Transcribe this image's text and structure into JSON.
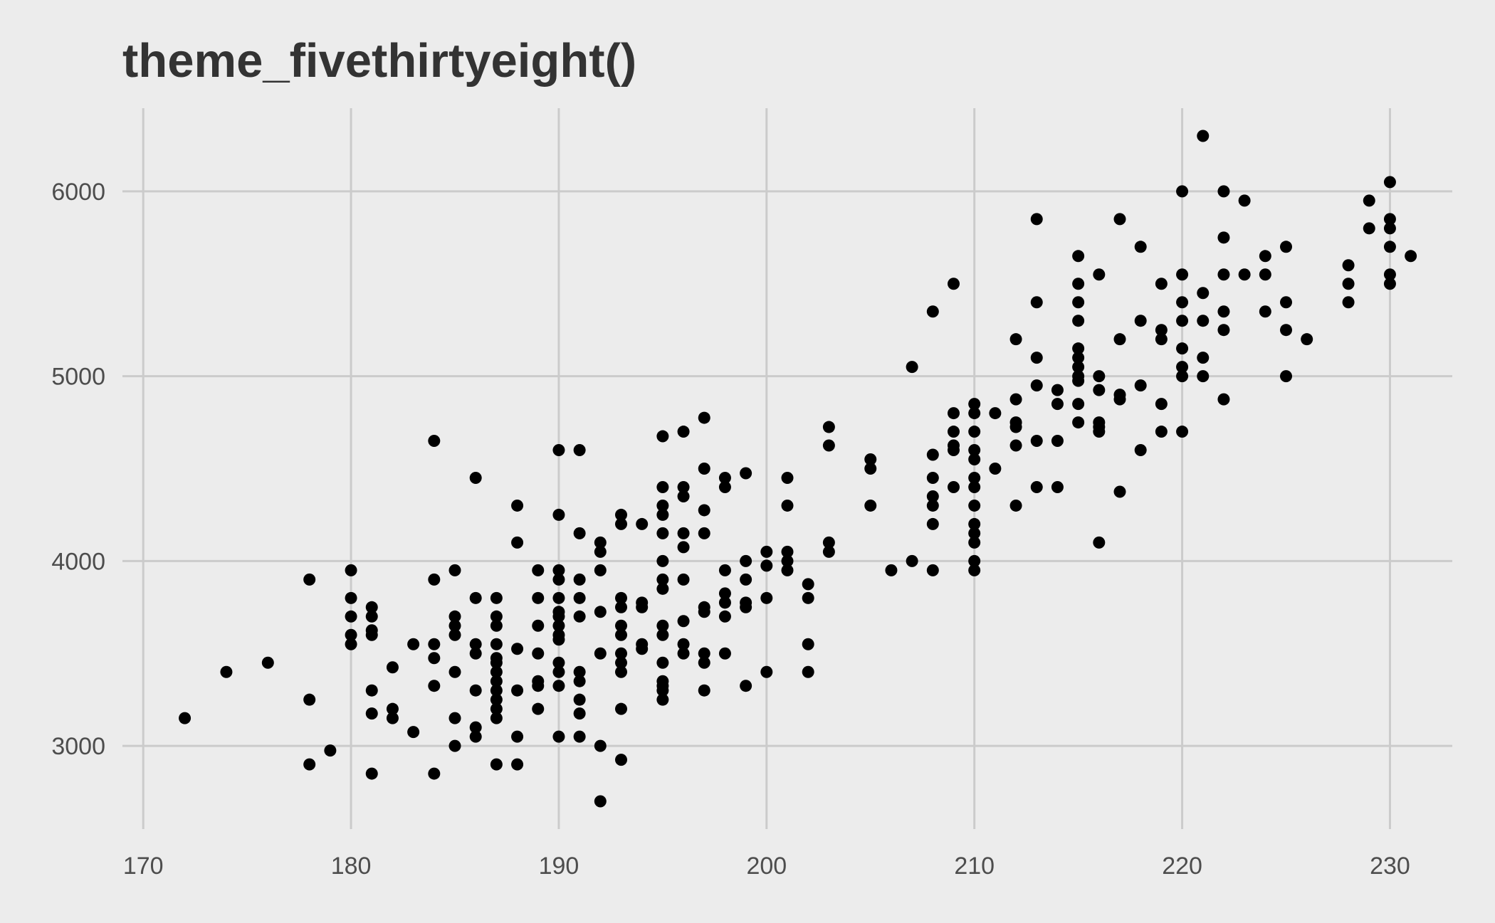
{
  "chart_data": {
    "type": "scatter",
    "title": "theme_fivethirtyeight()",
    "xlabel": "",
    "ylabel": "",
    "xlim": [
      169,
      233
    ],
    "ylim": [
      2550,
      6450
    ],
    "x_ticks": [
      170,
      180,
      190,
      200,
      210,
      220,
      230
    ],
    "y_ticks": [
      3000,
      4000,
      5000,
      6000
    ],
    "x_tick_labels": [
      "170",
      "180",
      "190",
      "200",
      "210",
      "220",
      "230"
    ],
    "y_tick_labels": [
      "3000",
      "4000",
      "5000",
      "6000"
    ],
    "grid": true,
    "legend": "none",
    "colors": {
      "background": "#ececec",
      "grid": "#cbcbcb",
      "points": "#000000",
      "text": "#333333"
    },
    "points": [
      [
        172,
        3150
      ],
      [
        174,
        3400
      ],
      [
        176,
        3450
      ],
      [
        178,
        3900
      ],
      [
        178,
        3250
      ],
      [
        178,
        2900
      ],
      [
        179,
        2975
      ],
      [
        180,
        3950
      ],
      [
        180,
        3800
      ],
      [
        180,
        3700
      ],
      [
        180,
        3600
      ],
      [
        180,
        3550
      ],
      [
        181,
        3750
      ],
      [
        181,
        3700
      ],
      [
        181,
        3625
      ],
      [
        181,
        3600
      ],
      [
        181,
        3300
      ],
      [
        181,
        3175
      ],
      [
        181,
        2850
      ],
      [
        182,
        3425
      ],
      [
        182,
        3200
      ],
      [
        182,
        3150
      ],
      [
        183,
        3550
      ],
      [
        183,
        3075
      ],
      [
        184,
        4650
      ],
      [
        184,
        3900
      ],
      [
        184,
        3550
      ],
      [
        184,
        3475
      ],
      [
        184,
        3325
      ],
      [
        184,
        2850
      ],
      [
        185,
        3950
      ],
      [
        185,
        3700
      ],
      [
        185,
        3650
      ],
      [
        185,
        3600
      ],
      [
        185,
        3400
      ],
      [
        185,
        3150
      ],
      [
        185,
        3000
      ],
      [
        186,
        4450
      ],
      [
        186,
        3800
      ],
      [
        186,
        3550
      ],
      [
        186,
        3500
      ],
      [
        186,
        3300
      ],
      [
        186,
        3100
      ],
      [
        186,
        3050
      ],
      [
        187,
        3800
      ],
      [
        187,
        3700
      ],
      [
        187,
        3650
      ],
      [
        187,
        3550
      ],
      [
        187,
        3475
      ],
      [
        187,
        3450
      ],
      [
        187,
        3400
      ],
      [
        187,
        3350
      ],
      [
        187,
        3300
      ],
      [
        187,
        3250
      ],
      [
        187,
        3200
      ],
      [
        187,
        3150
      ],
      [
        187,
        2900
      ],
      [
        188,
        4300
      ],
      [
        188,
        4100
      ],
      [
        188,
        3525
      ],
      [
        188,
        3300
      ],
      [
        188,
        3050
      ],
      [
        188,
        2900
      ],
      [
        189,
        3950
      ],
      [
        189,
        3800
      ],
      [
        189,
        3650
      ],
      [
        189,
        3500
      ],
      [
        189,
        3350
      ],
      [
        189,
        3325
      ],
      [
        189,
        3200
      ],
      [
        190,
        4600
      ],
      [
        190,
        4250
      ],
      [
        190,
        3950
      ],
      [
        190,
        3900
      ],
      [
        190,
        3800
      ],
      [
        190,
        3725
      ],
      [
        190,
        3700
      ],
      [
        190,
        3650
      ],
      [
        190,
        3600
      ],
      [
        190,
        3575
      ],
      [
        190,
        3450
      ],
      [
        190,
        3400
      ],
      [
        190,
        3325
      ],
      [
        190,
        3050
      ],
      [
        191,
        4600
      ],
      [
        191,
        4150
      ],
      [
        191,
        3900
      ],
      [
        191,
        3800
      ],
      [
        191,
        3700
      ],
      [
        191,
        3400
      ],
      [
        191,
        3350
      ],
      [
        191,
        3250
      ],
      [
        191,
        3175
      ],
      [
        191,
        3050
      ],
      [
        192,
        4100
      ],
      [
        192,
        4050
      ],
      [
        192,
        3950
      ],
      [
        192,
        3725
      ],
      [
        192,
        3500
      ],
      [
        192,
        3000
      ],
      [
        192,
        2700
      ],
      [
        193,
        4250
      ],
      [
        193,
        4200
      ],
      [
        193,
        3800
      ],
      [
        193,
        3750
      ],
      [
        193,
        3650
      ],
      [
        193,
        3600
      ],
      [
        193,
        3500
      ],
      [
        193,
        3450
      ],
      [
        193,
        3400
      ],
      [
        193,
        3200
      ],
      [
        193,
        2925
      ],
      [
        194,
        4200
      ],
      [
        194,
        3775
      ],
      [
        194,
        3750
      ],
      [
        194,
        3550
      ],
      [
        194,
        3525
      ],
      [
        195,
        4675
      ],
      [
        195,
        4400
      ],
      [
        195,
        4300
      ],
      [
        195,
        4250
      ],
      [
        195,
        4150
      ],
      [
        195,
        4000
      ],
      [
        195,
        3900
      ],
      [
        195,
        3850
      ],
      [
        195,
        3650
      ],
      [
        195,
        3600
      ],
      [
        195,
        3450
      ],
      [
        195,
        3350
      ],
      [
        195,
        3325
      ],
      [
        195,
        3300
      ],
      [
        195,
        3250
      ],
      [
        196,
        4700
      ],
      [
        196,
        4400
      ],
      [
        196,
        4350
      ],
      [
        196,
        4150
      ],
      [
        196,
        4075
      ],
      [
        196,
        3900
      ],
      [
        196,
        3675
      ],
      [
        196,
        3550
      ],
      [
        196,
        3500
      ],
      [
        197,
        4775
      ],
      [
        197,
        4500
      ],
      [
        197,
        4275
      ],
      [
        197,
        4150
      ],
      [
        197,
        3750
      ],
      [
        197,
        3725
      ],
      [
        197,
        3500
      ],
      [
        197,
        3450
      ],
      [
        197,
        3300
      ],
      [
        198,
        4450
      ],
      [
        198,
        4400
      ],
      [
        198,
        3950
      ],
      [
        198,
        3825
      ],
      [
        198,
        3775
      ],
      [
        198,
        3700
      ],
      [
        198,
        3500
      ],
      [
        199,
        4475
      ],
      [
        199,
        4000
      ],
      [
        199,
        3900
      ],
      [
        199,
        3775
      ],
      [
        199,
        3750
      ],
      [
        199,
        3325
      ],
      [
        200,
        4050
      ],
      [
        200,
        3975
      ],
      [
        200,
        3800
      ],
      [
        200,
        3400
      ],
      [
        201,
        4450
      ],
      [
        201,
        4300
      ],
      [
        201,
        4050
      ],
      [
        201,
        4000
      ],
      [
        201,
        3950
      ],
      [
        202,
        3875
      ],
      [
        202,
        3800
      ],
      [
        202,
        3550
      ],
      [
        202,
        3400
      ],
      [
        203,
        4725
      ],
      [
        203,
        4625
      ],
      [
        203,
        4100
      ],
      [
        203,
        4050
      ],
      [
        205,
        4550
      ],
      [
        205,
        4500
      ],
      [
        205,
        4300
      ],
      [
        206,
        3950
      ],
      [
        207,
        5050
      ],
      [
        207,
        4000
      ],
      [
        208,
        5350
      ],
      [
        208,
        4575
      ],
      [
        208,
        4450
      ],
      [
        208,
        4350
      ],
      [
        208,
        4300
      ],
      [
        208,
        4200
      ],
      [
        208,
        3950
      ],
      [
        209,
        5500
      ],
      [
        209,
        4800
      ],
      [
        209,
        4700
      ],
      [
        209,
        4625
      ],
      [
        209,
        4600
      ],
      [
        209,
        4400
      ],
      [
        210,
        4850
      ],
      [
        210,
        4800
      ],
      [
        210,
        4700
      ],
      [
        210,
        4600
      ],
      [
        210,
        4550
      ],
      [
        210,
        4450
      ],
      [
        210,
        4400
      ],
      [
        210,
        4300
      ],
      [
        210,
        4200
      ],
      [
        210,
        4150
      ],
      [
        210,
        4100
      ],
      [
        210,
        4000
      ],
      [
        210,
        3950
      ],
      [
        211,
        4800
      ],
      [
        211,
        4500
      ],
      [
        212,
        5200
      ],
      [
        212,
        4875
      ],
      [
        212,
        4750
      ],
      [
        212,
        4725
      ],
      [
        212,
        4625
      ],
      [
        212,
        4300
      ],
      [
        213,
        5850
      ],
      [
        213,
        5400
      ],
      [
        213,
        5100
      ],
      [
        213,
        4950
      ],
      [
        213,
        4650
      ],
      [
        213,
        4400
      ],
      [
        214,
        4925
      ],
      [
        214,
        4850
      ],
      [
        214,
        4650
      ],
      [
        214,
        4400
      ],
      [
        215,
        5650
      ],
      [
        215,
        5500
      ],
      [
        215,
        5400
      ],
      [
        215,
        5300
      ],
      [
        215,
        5150
      ],
      [
        215,
        5100
      ],
      [
        215,
        5050
      ],
      [
        215,
        5000
      ],
      [
        215,
        4975
      ],
      [
        215,
        4850
      ],
      [
        215,
        4750
      ],
      [
        216,
        5550
      ],
      [
        216,
        5000
      ],
      [
        216,
        4925
      ],
      [
        216,
        4750
      ],
      [
        216,
        4725
      ],
      [
        216,
        4700
      ],
      [
        216,
        4100
      ],
      [
        217,
        5850
      ],
      [
        217,
        5200
      ],
      [
        217,
        4900
      ],
      [
        217,
        4875
      ],
      [
        217,
        4375
      ],
      [
        218,
        5700
      ],
      [
        218,
        5300
      ],
      [
        218,
        4950
      ],
      [
        218,
        4600
      ],
      [
        219,
        5500
      ],
      [
        219,
        5250
      ],
      [
        219,
        5200
      ],
      [
        219,
        4850
      ],
      [
        219,
        4700
      ],
      [
        220,
        6000
      ],
      [
        220,
        5550
      ],
      [
        220,
        5400
      ],
      [
        220,
        5300
      ],
      [
        220,
        5150
      ],
      [
        220,
        5050
      ],
      [
        220,
        5000
      ],
      [
        220,
        4700
      ],
      [
        221,
        6300
      ],
      [
        221,
        5450
      ],
      [
        221,
        5300
      ],
      [
        221,
        5100
      ],
      [
        221,
        5000
      ],
      [
        222,
        6000
      ],
      [
        222,
        5750
      ],
      [
        222,
        5550
      ],
      [
        222,
        5350
      ],
      [
        222,
        5250
      ],
      [
        222,
        4875
      ],
      [
        223,
        5950
      ],
      [
        223,
        5550
      ],
      [
        224,
        5650
      ],
      [
        224,
        5550
      ],
      [
        224,
        5350
      ],
      [
        225,
        5700
      ],
      [
        225,
        5400
      ],
      [
        225,
        5250
      ],
      [
        225,
        5000
      ],
      [
        226,
        5200
      ],
      [
        228,
        5600
      ],
      [
        228,
        5500
      ],
      [
        228,
        5400
      ],
      [
        229,
        5950
      ],
      [
        229,
        5800
      ],
      [
        230,
        6050
      ],
      [
        230,
        5850
      ],
      [
        230,
        5800
      ],
      [
        230,
        5700
      ],
      [
        230,
        5550
      ],
      [
        230,
        5500
      ],
      [
        231,
        5650
      ]
    ]
  }
}
